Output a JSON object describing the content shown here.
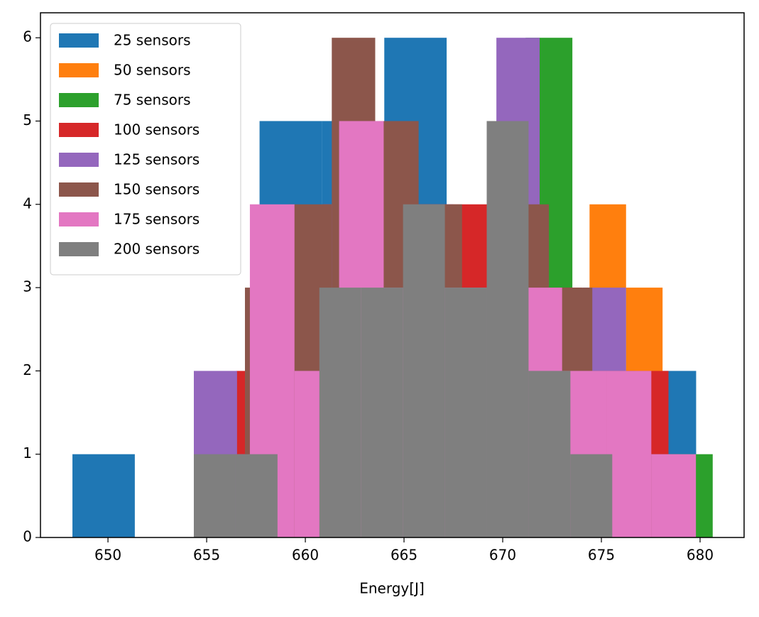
{
  "chart_data": {
    "type": "histogram",
    "x_label": "Energy[J]",
    "xlim": [
      646.58,
      682.23
    ],
    "ylim": [
      0,
      6.3
    ],
    "xticks": [
      650,
      655,
      660,
      665,
      670,
      675,
      680
    ],
    "yticks": [
      0,
      1,
      2,
      3,
      4,
      5,
      6
    ],
    "legend": "upper left",
    "series": [
      {
        "name": "25 sensors",
        "color": "#1f77b4",
        "bins": [
          648.2,
          651.36,
          654.52,
          657.68,
          660.84,
          664.0,
          667.16,
          670.32,
          673.48,
          676.64,
          679.8
        ],
        "values": [
          1,
          0,
          0,
          5,
          5,
          6,
          2,
          3,
          1,
          2
        ]
      },
      {
        "name": "50 sensors",
        "color": "#ff7f0e",
        "bins": [
          659.6,
          661.45,
          663.3,
          665.15,
          667.0,
          668.85,
          670.7,
          672.55,
          674.4,
          676.25,
          678.1
        ],
        "values": [
          2,
          3,
          4,
          3,
          3,
          2,
          3,
          2,
          4,
          3
        ]
      },
      {
        "name": "75 sensors",
        "color": "#2ca02c",
        "bins": [
          656.94,
          659.31,
          661.68,
          664.05,
          666.42,
          668.79,
          671.16,
          673.53,
          675.9,
          678.27,
          680.64
        ],
        "values": [
          1,
          2,
          3,
          4,
          3,
          3,
          6,
          2,
          1,
          1
        ]
      },
      {
        "name": "100 sensors",
        "color": "#d62728",
        "bins": [
          656.5,
          658.69,
          660.88,
          663.07,
          665.26,
          667.45,
          669.64,
          671.83,
          674.02,
          676.21,
          678.4
        ],
        "values": [
          2,
          3,
          4,
          5,
          4,
          4,
          3,
          3,
          2,
          2
        ]
      },
      {
        "name": "125 sensors",
        "color": "#9467bd",
        "bins": [
          654.35,
          656.54,
          658.73,
          660.92,
          663.11,
          665.3,
          667.49,
          669.68,
          671.87,
          674.06,
          676.25
        ],
        "values": [
          2,
          1,
          3,
          4,
          5,
          4,
          3,
          6,
          2,
          3
        ]
      },
      {
        "name": "150 sensors",
        "color": "#8c564b",
        "bins": [
          656.94,
          659.14,
          661.34,
          663.54,
          665.74,
          667.94,
          670.14,
          672.34,
          674.54,
          676.74,
          678.94
        ],
        "values": [
          3,
          4,
          6,
          5,
          4,
          3,
          4,
          3,
          2,
          1
        ]
      },
      {
        "name": "175 sensors",
        "color": "#e377c2",
        "bins": [
          657.19,
          659.45,
          661.71,
          663.97,
          666.23,
          668.49,
          670.75,
          673.01,
          675.27,
          677.53,
          679.79
        ],
        "values": [
          4,
          2,
          5,
          3,
          3,
          3,
          3,
          2,
          2,
          1
        ]
      },
      {
        "name": "200 sensors",
        "color": "#7f7f7f",
        "bins": [
          654.35,
          656.47,
          658.59,
          660.71,
          662.83,
          664.95,
          667.07,
          669.19,
          671.31,
          673.43,
          675.55
        ],
        "values": [
          1,
          1,
          0,
          3,
          3,
          4,
          3,
          5,
          2,
          1
        ]
      }
    ]
  }
}
